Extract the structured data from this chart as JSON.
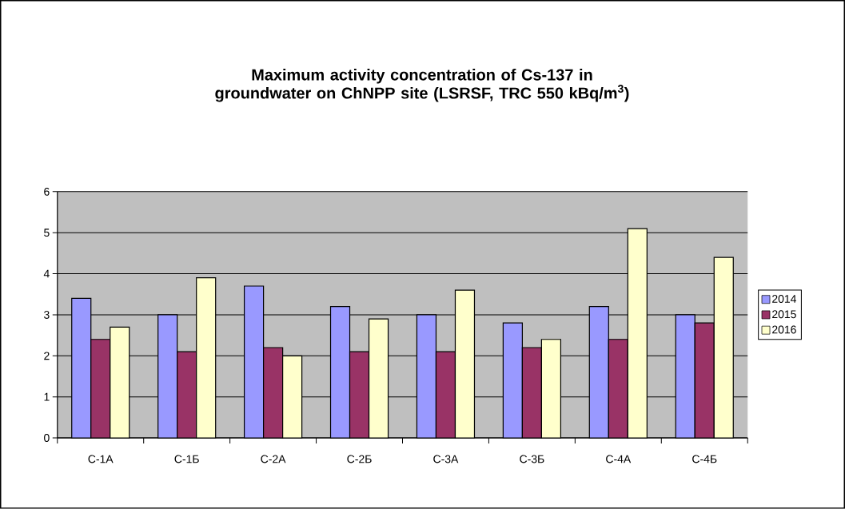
{
  "chart_data": {
    "type": "bar",
    "title": "Maximum activity concentration of Cs-137 in groundwater on ChNPP site (LSRSF, TRC 550 kBq/m$^{3}$)",
    "categories": [
      "С-1А",
      "С-1Б",
      "С-2А",
      "С-2Б",
      "С-3А",
      "С-3Б",
      "С-4А",
      "С-4Б"
    ],
    "series": [
      {
        "name": "2014",
        "color": "#9999ff",
        "values": [
          3.4,
          3.0,
          3.7,
          3.2,
          3.0,
          2.8,
          3.2,
          3.0
        ]
      },
      {
        "name": "2015",
        "color": "#993366",
        "values": [
          2.4,
          2.1,
          2.2,
          2.1,
          2.1,
          2.2,
          2.4,
          2.8
        ]
      },
      {
        "name": "2016",
        "color": "#ffffcc",
        "values": [
          2.7,
          3.9,
          2.0,
          2.9,
          3.6,
          2.4,
          5.1,
          4.4
        ]
      }
    ],
    "ylim": [
      0,
      6
    ],
    "yticks": [
      0,
      1,
      2,
      3,
      4,
      5,
      6
    ],
    "grid": "y",
    "legend": "right"
  }
}
